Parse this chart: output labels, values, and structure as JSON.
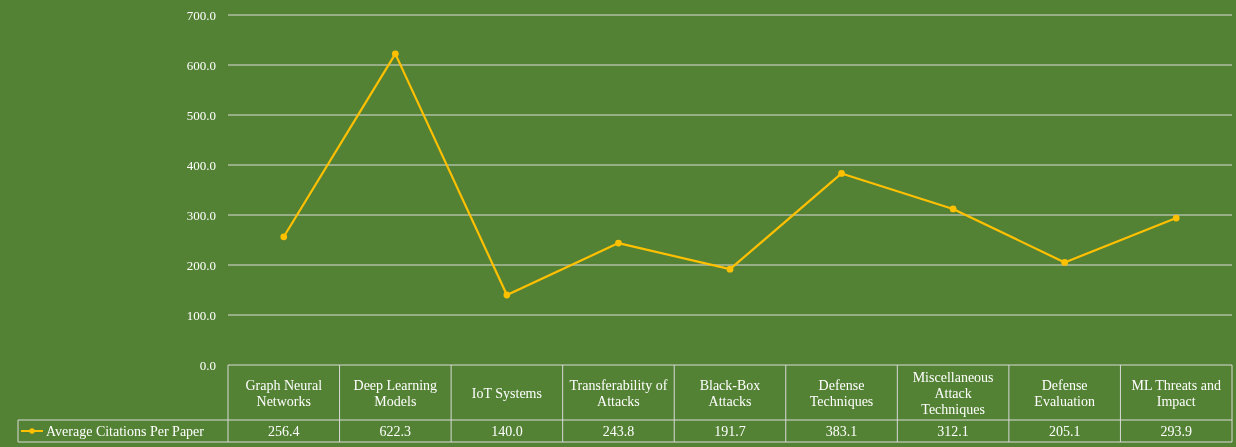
{
  "chart_data": {
    "type": "line",
    "categories": [
      "Graph Neural Networks",
      "Deep Learning Models",
      "IoT Systems",
      "Transferability of Attacks",
      "Black-Box Attacks",
      "Defense Techniques",
      "Miscellaneous Attack Techniques",
      "Defense Evaluation",
      "ML Threats and Impact"
    ],
    "series": [
      {
        "name": "Average Citations Per Paper",
        "color": "#ffc000",
        "values": [
          256.4,
          622.3,
          140.0,
          243.8,
          191.7,
          383.1,
          312.1,
          205.1,
          293.9
        ]
      }
    ],
    "ylim": [
      0,
      700
    ],
    "yticks": [
      {
        "value": 0,
        "label": "0.0"
      },
      {
        "value": 100,
        "label": "100.0"
      },
      {
        "value": 200,
        "label": "200.0"
      },
      {
        "value": 300,
        "label": "300.0"
      },
      {
        "value": 400,
        "label": "400.0"
      },
      {
        "value": 500,
        "label": "500.0"
      },
      {
        "value": 600,
        "label": "600.0"
      },
      {
        "value": 700,
        "label": "700.0"
      }
    ],
    "value_labels": [
      "256.4",
      "622.3",
      "140.0",
      "243.8",
      "191.7",
      "383.1",
      "312.1",
      "205.1",
      "293.9"
    ],
    "grid": "y",
    "marker": "circle",
    "line_style": "solid",
    "legend": "bottom left"
  }
}
